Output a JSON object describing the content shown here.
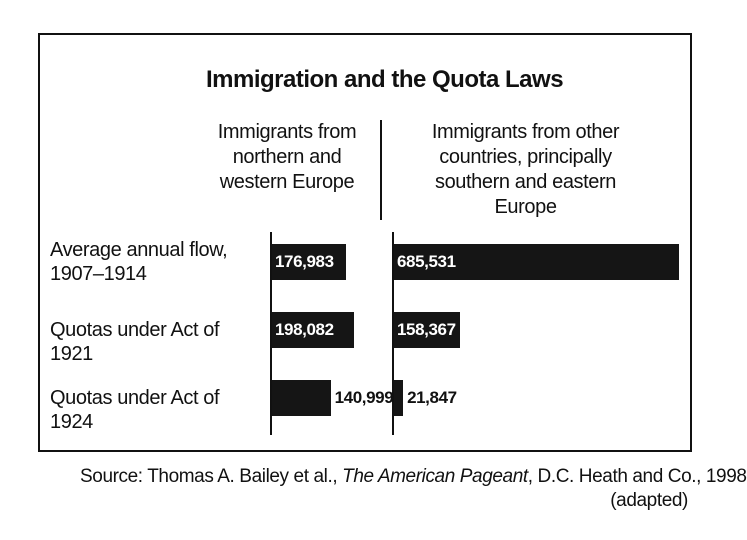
{
  "chart_data": {
    "type": "bar",
    "orientation": "horizontal",
    "title": "Immigration and the Quota Laws",
    "categories": [
      "Average annual flow, 1907–1914",
      "Quotas under Act of 1921",
      "Quotas under Act of 1924"
    ],
    "series": [
      {
        "name": "Immigrants from northern and western Europe",
        "color": "#151515",
        "values": [
          176983,
          198082,
          140999
        ],
        "value_labels": [
          "176,983",
          "198,082",
          "140,999"
        ]
      },
      {
        "name": "Immigrants from other countries, principally southern and eastern Europe",
        "color": "#151515",
        "values": [
          685531,
          158367,
          21847
        ],
        "value_labels": [
          "685,531",
          "158,367",
          "21,847"
        ]
      }
    ],
    "source": {
      "prefix": "Source: Thomas A. Bailey et al.,",
      "work": "The American Pageant",
      "rest": ", D.C. Heath and Co., 1998",
      "note": "(adapted)"
    }
  }
}
